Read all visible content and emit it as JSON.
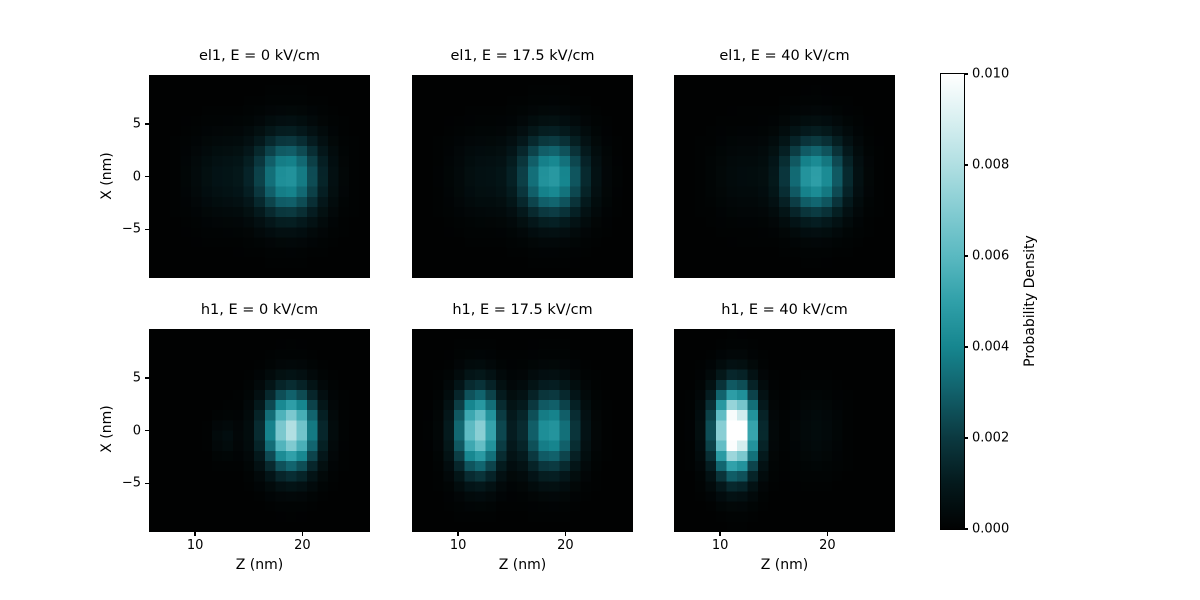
{
  "figure": {
    "background": "#ffffff",
    "type_label": "probability-density-heatmap-grid"
  },
  "chart_data": {
    "type": "heatmap",
    "layout": "2 rows (states el1, h1) x 3 columns (E = 0, 17.5, 40 kV/cm)",
    "xlabel": "Z (nm)",
    "ylabel": "X (nm)",
    "colorbar_label": "Probability Density",
    "x_range": [
      5.7,
      26.3
    ],
    "y_range": [
      -9.6,
      9.65
    ],
    "grid": {
      "nz": 21,
      "nx": 20
    },
    "x_ticks": [
      {
        "value": 10,
        "label": "10"
      },
      {
        "value": 20,
        "label": "20"
      }
    ],
    "y_ticks": [
      {
        "value": 5,
        "label": "5"
      },
      {
        "value": 0,
        "label": "0"
      },
      {
        "value": -5,
        "label": "−5"
      }
    ],
    "colormap": {
      "vmin": 0.0,
      "vmax": 0.01,
      "description": "black to teal to white",
      "stops": [
        {
          "t": 0.0,
          "color": "#010202"
        },
        {
          "t": 0.1,
          "color": "#04191c"
        },
        {
          "t": 0.2,
          "color": "#0b3940"
        },
        {
          "t": 0.3,
          "color": "#11606a"
        },
        {
          "t": 0.4,
          "color": "#16868f"
        },
        {
          "t": 0.5,
          "color": "#30a0a9"
        },
        {
          "t": 0.6,
          "color": "#5ab9c1"
        },
        {
          "t": 0.7,
          "color": "#84ccd2"
        },
        {
          "t": 0.8,
          "color": "#b0dfe2"
        },
        {
          "t": 0.9,
          "color": "#d9f0f1"
        },
        {
          "t": 1.0,
          "color": "#ffffff"
        }
      ]
    },
    "colorbar_ticks": [
      {
        "value": 0.01,
        "label": "0.010"
      },
      {
        "value": 0.008,
        "label": "0.008"
      },
      {
        "value": 0.006,
        "label": "0.006"
      },
      {
        "value": 0.004,
        "label": "0.004"
      },
      {
        "value": 0.002,
        "label": "0.002"
      },
      {
        "value": 0.0,
        "label": "0.000"
      }
    ],
    "subplots": [
      {
        "title": "el1, E = 0 kV/cm",
        "state": "el1",
        "field_kV_cm": 0,
        "blobs": [
          {
            "z": 18.6,
            "x": 0,
            "sigma_z": 2.1,
            "sigma_x": 2.6,
            "peak": 0.0046
          },
          {
            "z": 12.4,
            "x": 0,
            "sigma_z": 1.9,
            "sigma_x": 2.6,
            "peak": 0.0007
          }
        ]
      },
      {
        "title": "el1, E = 17.5 kV/cm",
        "state": "el1",
        "field_kV_cm": 17.5,
        "blobs": [
          {
            "z": 18.7,
            "x": 0,
            "sigma_z": 2.1,
            "sigma_x": 2.6,
            "peak": 0.0048
          },
          {
            "z": 12.2,
            "x": 0,
            "sigma_z": 1.9,
            "sigma_x": 2.6,
            "peak": 0.0006
          }
        ]
      },
      {
        "title": "el1, E = 40 kV/cm",
        "state": "el1",
        "field_kV_cm": 40,
        "blobs": [
          {
            "z": 18.8,
            "x": 0,
            "sigma_z": 2.0,
            "sigma_x": 2.5,
            "peak": 0.005
          },
          {
            "z": 12.0,
            "x": 0,
            "sigma_z": 1.9,
            "sigma_x": 2.6,
            "peak": 0.0004
          }
        ]
      },
      {
        "title": "h1, E = 0 kV/cm",
        "state": "h1",
        "field_kV_cm": 0,
        "blobs": [
          {
            "z": 18.9,
            "x": 0,
            "sigma_z": 1.6,
            "sigma_x": 2.4,
            "peak": 0.0082
          },
          {
            "z": 12.8,
            "x": -0.6,
            "sigma_z": 0.8,
            "sigma_x": 1.2,
            "peak": 0.0005
          }
        ]
      },
      {
        "title": "h1, E = 17.5 kV/cm",
        "state": "h1",
        "field_kV_cm": 17.5,
        "blobs": [
          {
            "z": 11.9,
            "x": 0,
            "sigma_z": 1.4,
            "sigma_x": 2.6,
            "peak": 0.0073
          },
          {
            "z": 18.6,
            "x": 0,
            "sigma_z": 1.7,
            "sigma_x": 2.6,
            "peak": 0.0047
          }
        ]
      },
      {
        "title": "h1, E = 40 kV/cm",
        "state": "h1",
        "field_kV_cm": 40,
        "blobs": [
          {
            "z": 11.4,
            "x": 0,
            "sigma_z": 1.3,
            "sigma_x": 2.6,
            "peak": 0.0118
          },
          {
            "z": 18.9,
            "x": 0,
            "sigma_z": 1.5,
            "sigma_x": 2.5,
            "peak": 0.0004
          }
        ]
      }
    ]
  }
}
